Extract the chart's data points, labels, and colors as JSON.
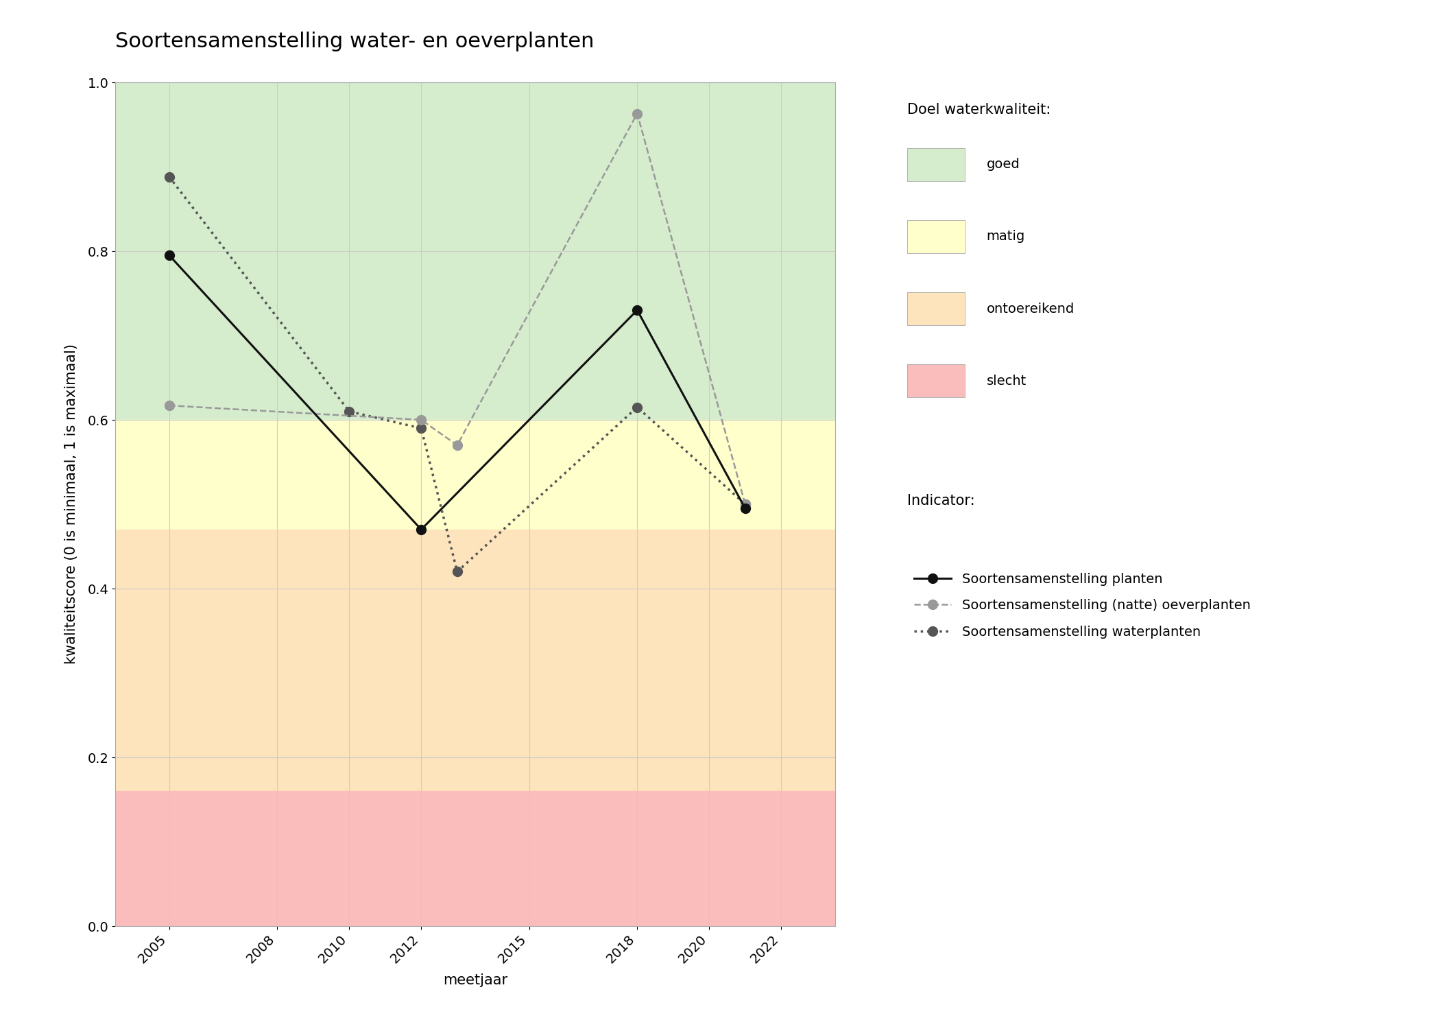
{
  "title": "Soortensamenstelling water- en oeverplanten",
  "xlabel": "meetjaar",
  "ylabel": "kwaliteitscore (0 is minimaal, 1 is maximaal)",
  "xlim": [
    2003.5,
    2023.5
  ],
  "ylim": [
    0.0,
    1.0
  ],
  "xticks": [
    2005,
    2008,
    2010,
    2012,
    2015,
    2018,
    2020,
    2022
  ],
  "bg_colors": {
    "goed": {
      "ymin": 0.6,
      "ymax": 1.0,
      "color": "#d5edcc"
    },
    "matig": {
      "ymin": 0.47,
      "ymax": 0.6,
      "color": "#ffffcc"
    },
    "ontoereikend": {
      "ymin": 0.16,
      "ymax": 0.47,
      "color": "#fde4bc"
    },
    "slecht": {
      "ymin": 0.0,
      "ymax": 0.16,
      "color": "#fbbcbc"
    }
  },
  "series_planten": {
    "x": [
      2005,
      2012,
      2018,
      2021
    ],
    "y": [
      0.795,
      0.47,
      0.73,
      0.495
    ],
    "color": "#111111",
    "linestyle": "solid",
    "linewidth": 2.2,
    "markersize": 10,
    "label": "Soortensamenstelling planten"
  },
  "series_oeverplanten": {
    "x": [
      2005,
      2012,
      2013,
      2018,
      2021
    ],
    "y": [
      0.617,
      0.6,
      0.57,
      0.963,
      0.5
    ],
    "color": "#999999",
    "linestyle": "dashed",
    "linewidth": 1.8,
    "markersize": 10,
    "label": "Soortensamenstelling (natte) oeverplanten"
  },
  "series_waterplanten": {
    "x": [
      2005,
      2010,
      2012,
      2013,
      2018,
      2021
    ],
    "y": [
      0.888,
      0.61,
      0.59,
      0.42,
      0.615,
      0.5
    ],
    "color": "#555555",
    "linestyle": "dotted",
    "linewidth": 2.5,
    "markersize": 10,
    "label": "Soortensamenstelling waterplanten"
  },
  "legend_quality_title": "Doel waterkwaliteit:",
  "legend_quality": [
    {
      "label": "goed",
      "color": "#d5edcc"
    },
    {
      "label": "matig",
      "color": "#ffffcc"
    },
    {
      "label": "ontoereikend",
      "color": "#fde4bc"
    },
    {
      "label": "slecht",
      "color": "#fbbcbc"
    }
  ],
  "legend_indicator_title": "Indicator:",
  "grid_color": "#cccccc",
  "background_color": "#ffffff",
  "title_fontsize": 22,
  "label_fontsize": 15,
  "tick_fontsize": 14,
  "legend_fontsize": 14
}
